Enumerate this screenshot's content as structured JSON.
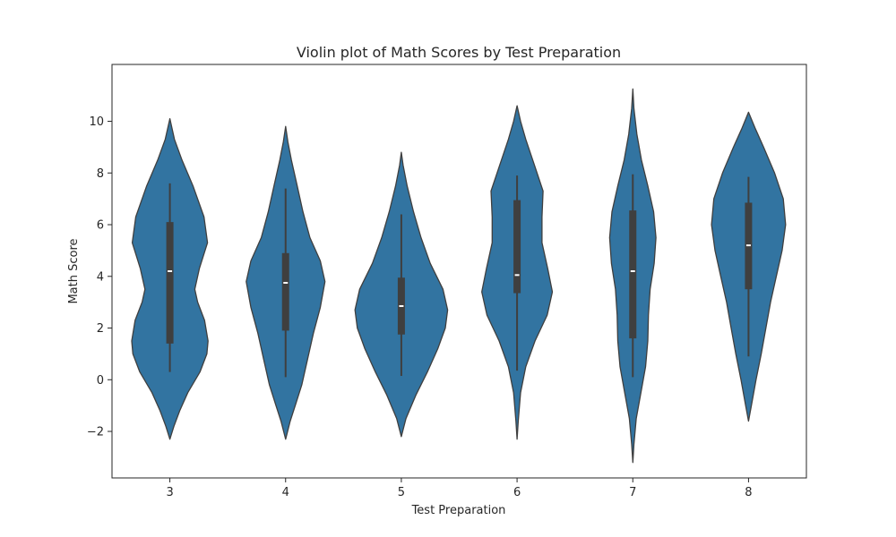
{
  "chart_data": {
    "type": "violin",
    "title": "Violin plot of Math Scores by Test Preparation",
    "xlabel": "Test Preparation",
    "ylabel": "Math Score",
    "ylim": [
      -3.8,
      12.2
    ],
    "yticks": [
      -2,
      0,
      2,
      4,
      6,
      8,
      10
    ],
    "ytick_labels": [
      "−2",
      "0",
      "2",
      "4",
      "6",
      "8",
      "10"
    ],
    "categories": [
      "3",
      "4",
      "5",
      "6",
      "7",
      "8"
    ],
    "grid": false,
    "violin_color": "#3274a1",
    "edge_color": "#3f3f3f",
    "box_color": "#3f3f3f",
    "median_color": "#ffffff",
    "violins": [
      {
        "category": "3",
        "whisker_low": 0.3,
        "q1": 1.4,
        "median": 4.2,
        "q3": 6.1,
        "whisker_high": 7.6,
        "profile": [
          [
            -2.3,
            0.0
          ],
          [
            -1.8,
            0.07
          ],
          [
            -1.2,
            0.17
          ],
          [
            -0.5,
            0.31
          ],
          [
            0.3,
            0.52
          ],
          [
            1.0,
            0.64
          ],
          [
            1.5,
            0.66
          ],
          [
            2.3,
            0.6
          ],
          [
            3.0,
            0.48
          ],
          [
            3.5,
            0.43
          ],
          [
            4.3,
            0.51
          ],
          [
            5.3,
            0.65
          ],
          [
            6.3,
            0.59
          ],
          [
            7.5,
            0.4
          ],
          [
            8.5,
            0.21
          ],
          [
            9.3,
            0.08
          ],
          [
            10.1,
            0.0
          ]
        ]
      },
      {
        "category": "4",
        "whisker_low": 0.1,
        "q1": 1.9,
        "median": 3.75,
        "q3": 4.9,
        "whisker_high": 7.4,
        "profile": [
          [
            -2.3,
            0.0
          ],
          [
            -1.6,
            0.08
          ],
          [
            -0.9,
            0.18
          ],
          [
            -0.2,
            0.28
          ],
          [
            0.8,
            0.38
          ],
          [
            1.8,
            0.48
          ],
          [
            2.8,
            0.6
          ],
          [
            3.8,
            0.68
          ],
          [
            4.6,
            0.6
          ],
          [
            5.5,
            0.42
          ],
          [
            6.5,
            0.3
          ],
          [
            7.5,
            0.2
          ],
          [
            8.5,
            0.1
          ],
          [
            9.2,
            0.04
          ],
          [
            9.8,
            0.0
          ]
        ]
      },
      {
        "category": "5",
        "whisker_low": 0.15,
        "q1": 1.75,
        "median": 2.85,
        "q3": 3.95,
        "whisker_high": 6.4,
        "profile": [
          [
            -2.2,
            0.0
          ],
          [
            -1.5,
            0.08
          ],
          [
            -0.6,
            0.25
          ],
          [
            0.3,
            0.45
          ],
          [
            1.2,
            0.63
          ],
          [
            2.0,
            0.76
          ],
          [
            2.7,
            0.8
          ],
          [
            3.5,
            0.72
          ],
          [
            4.5,
            0.5
          ],
          [
            5.5,
            0.34
          ],
          [
            6.5,
            0.21
          ],
          [
            7.5,
            0.1
          ],
          [
            8.3,
            0.03
          ],
          [
            8.8,
            0.0
          ]
        ]
      },
      {
        "category": "6",
        "whisker_low": 0.35,
        "q1": 3.35,
        "median": 4.05,
        "q3": 6.95,
        "whisker_high": 7.9,
        "profile": [
          [
            -2.3,
            0.0
          ],
          [
            -1.6,
            0.02
          ],
          [
            -0.5,
            0.06
          ],
          [
            0.5,
            0.15
          ],
          [
            1.5,
            0.31
          ],
          [
            2.5,
            0.52
          ],
          [
            3.4,
            0.61
          ],
          [
            4.3,
            0.53
          ],
          [
            5.3,
            0.43
          ],
          [
            6.3,
            0.43
          ],
          [
            7.3,
            0.45
          ],
          [
            8.3,
            0.3
          ],
          [
            9.3,
            0.15
          ],
          [
            10.0,
            0.06
          ],
          [
            10.6,
            0.0
          ]
        ]
      },
      {
        "category": "7",
        "whisker_low": 0.1,
        "q1": 1.6,
        "median": 4.2,
        "q3": 6.55,
        "whisker_high": 7.95,
        "profile": [
          [
            -3.2,
            0.0
          ],
          [
            -2.5,
            0.02
          ],
          [
            -1.5,
            0.06
          ],
          [
            -0.5,
            0.14
          ],
          [
            0.5,
            0.22
          ],
          [
            1.5,
            0.26
          ],
          [
            2.5,
            0.27
          ],
          [
            3.5,
            0.3
          ],
          [
            4.5,
            0.37
          ],
          [
            5.5,
            0.4
          ],
          [
            6.5,
            0.36
          ],
          [
            7.5,
            0.26
          ],
          [
            8.5,
            0.15
          ],
          [
            9.5,
            0.07
          ],
          [
            10.5,
            0.02
          ],
          [
            11.25,
            0.0
          ]
        ]
      },
      {
        "category": "8",
        "whisker_low": 0.9,
        "q1": 3.5,
        "median": 5.2,
        "q3": 6.85,
        "whisker_high": 7.85,
        "profile": [
          [
            -1.6,
            0.0
          ],
          [
            -1.0,
            0.05
          ],
          [
            0.0,
            0.13
          ],
          [
            1.0,
            0.22
          ],
          [
            2.0,
            0.3
          ],
          [
            3.0,
            0.38
          ],
          [
            4.0,
            0.48
          ],
          [
            5.0,
            0.58
          ],
          [
            6.0,
            0.64
          ],
          [
            7.0,
            0.6
          ],
          [
            8.0,
            0.45
          ],
          [
            9.0,
            0.26
          ],
          [
            9.7,
            0.12
          ],
          [
            10.35,
            0.0
          ]
        ]
      }
    ]
  }
}
